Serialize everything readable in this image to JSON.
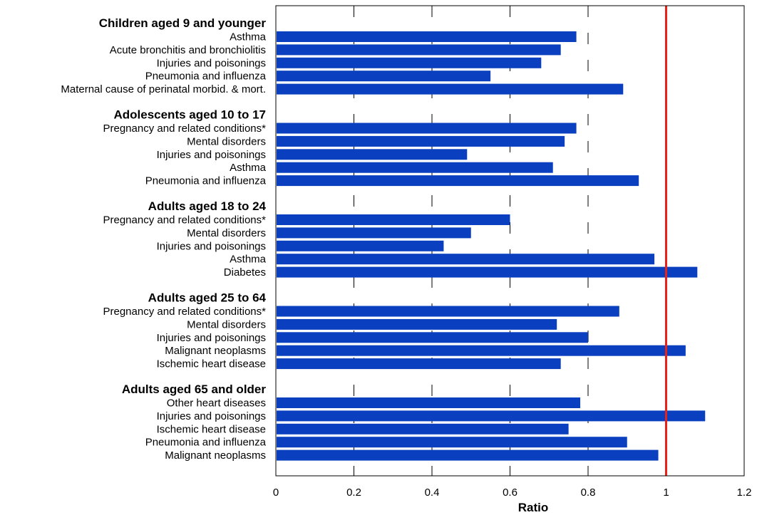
{
  "chart_data": {
    "type": "bar",
    "orientation": "horizontal",
    "xlabel": "Ratio",
    "xlim": [
      0,
      1.2
    ],
    "xticks": [
      "0",
      "0.2",
      "0.4",
      "0.6",
      "0.8",
      "1",
      "1.2"
    ],
    "gridlines": "dashed vertical at 0.2, 0.4, 0.6, 0.8",
    "reference_line": {
      "value": 1,
      "color": "#e8211b"
    },
    "bar_color": "#0a3fbf",
    "groups": [
      {
        "title": "Children aged 9 and younger",
        "items": [
          {
            "label": "Asthma",
            "value": 0.77
          },
          {
            "label": "Acute bronchitis and bronchiolitis",
            "value": 0.73
          },
          {
            "label": "Injuries and poisonings",
            "value": 0.68
          },
          {
            "label": "Pneumonia and influenza",
            "value": 0.55
          },
          {
            "label": "Maternal cause of perinatal morbid. & mort.",
            "value": 0.89
          }
        ]
      },
      {
        "title": "Adolescents aged 10 to 17",
        "items": [
          {
            "label": "Pregnancy and related conditions*",
            "value": 0.77
          },
          {
            "label": "Mental disorders",
            "value": 0.74
          },
          {
            "label": "Injuries and poisonings",
            "value": 0.49
          },
          {
            "label": "Asthma",
            "value": 0.71
          },
          {
            "label": "Pneumonia and influenza",
            "value": 0.93
          }
        ]
      },
      {
        "title": "Adults aged 18 to 24",
        "items": [
          {
            "label": "Pregnancy and related conditions*",
            "value": 0.6
          },
          {
            "label": "Mental disorders",
            "value": 0.5
          },
          {
            "label": "Injuries and poisonings",
            "value": 0.43
          },
          {
            "label": "Asthma",
            "value": 0.97
          },
          {
            "label": "Diabetes",
            "value": 1.08
          }
        ]
      },
      {
        "title": "Adults aged 25 to 64",
        "items": [
          {
            "label": "Pregnancy and related conditions*",
            "value": 0.88
          },
          {
            "label": "Mental disorders",
            "value": 0.72
          },
          {
            "label": "Injuries and poisonings",
            "value": 0.8
          },
          {
            "label": "Malignant neoplasms",
            "value": 1.05
          },
          {
            "label": "Ischemic heart disease",
            "value": 0.73
          }
        ]
      },
      {
        "title": "Adults aged 65 and older",
        "items": [
          {
            "label": "Other heart diseases",
            "value": 0.78
          },
          {
            "label": "Injuries and poisonings",
            "value": 1.1
          },
          {
            "label": "Ischemic heart disease",
            "value": 0.75
          },
          {
            "label": "Pneumonia and influenza",
            "value": 0.9
          },
          {
            "label": "Malignant neoplasms",
            "value": 0.98
          }
        ]
      }
    ]
  }
}
